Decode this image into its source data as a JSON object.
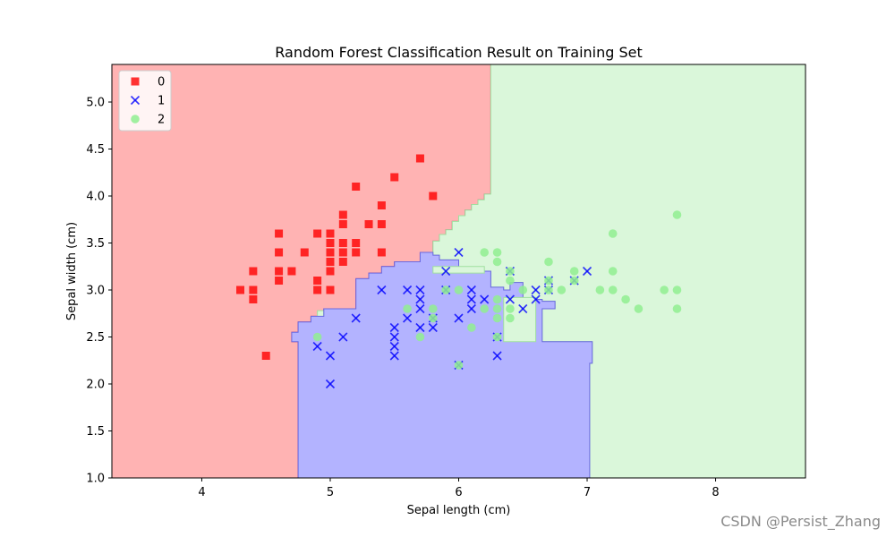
{
  "chart_data": {
    "type": "scatter",
    "title": "Random Forest Classification Result on Training Set",
    "xlabel": "Sepal length (cm)",
    "ylabel": "Sepal width (cm)",
    "xlim": [
      3.3,
      8.7
    ],
    "ylim": [
      1.0,
      5.4
    ],
    "xticks": [
      4,
      5,
      6,
      7,
      8
    ],
    "yticks": [
      1.0,
      1.5,
      2.0,
      2.5,
      3.0,
      3.5,
      4.0,
      4.5,
      5.0
    ],
    "grid": false,
    "legend_position": "top-left",
    "series": [
      {
        "name": "0",
        "marker": "square",
        "color": "#ff0000",
        "points": [
          [
            4.3,
            3.0
          ],
          [
            4.4,
            3.2
          ],
          [
            4.4,
            3.0
          ],
          [
            4.4,
            2.9
          ],
          [
            4.5,
            2.3
          ],
          [
            4.6,
            3.6
          ],
          [
            4.6,
            3.4
          ],
          [
            4.6,
            3.2
          ],
          [
            4.6,
            3.1
          ],
          [
            4.7,
            3.2
          ],
          [
            4.8,
            3.4
          ],
          [
            4.9,
            3.6
          ],
          [
            4.9,
            3.1
          ],
          [
            4.9,
            3.0
          ],
          [
            5.0,
            3.6
          ],
          [
            5.0,
            3.5
          ],
          [
            5.0,
            3.4
          ],
          [
            5.0,
            3.3
          ],
          [
            5.0,
            3.2
          ],
          [
            5.0,
            3.0
          ],
          [
            5.1,
            3.8
          ],
          [
            5.1,
            3.7
          ],
          [
            5.1,
            3.5
          ],
          [
            5.1,
            3.4
          ],
          [
            5.1,
            3.3
          ],
          [
            5.2,
            4.1
          ],
          [
            5.2,
            3.5
          ],
          [
            5.2,
            3.4
          ],
          [
            5.3,
            3.7
          ],
          [
            5.4,
            3.9
          ],
          [
            5.4,
            3.7
          ],
          [
            5.4,
            3.4
          ],
          [
            5.5,
            4.2
          ],
          [
            5.7,
            4.4
          ],
          [
            5.8,
            4.0
          ]
        ]
      },
      {
        "name": "1",
        "marker": "x",
        "color": "#0000ff",
        "points": [
          [
            4.9,
            2.4
          ],
          [
            5.0,
            2.3
          ],
          [
            5.0,
            2.0
          ],
          [
            5.1,
            2.5
          ],
          [
            5.2,
            2.7
          ],
          [
            5.4,
            3.0
          ],
          [
            5.5,
            2.6
          ],
          [
            5.5,
            2.5
          ],
          [
            5.5,
            2.4
          ],
          [
            5.5,
            2.3
          ],
          [
            5.6,
            3.0
          ],
          [
            5.6,
            2.7
          ],
          [
            5.7,
            3.0
          ],
          [
            5.7,
            2.9
          ],
          [
            5.7,
            2.8
          ],
          [
            5.7,
            2.6
          ],
          [
            5.8,
            2.7
          ],
          [
            5.8,
            2.6
          ],
          [
            5.9,
            3.2
          ],
          [
            5.9,
            3.0
          ],
          [
            6.0,
            3.4
          ],
          [
            6.0,
            2.7
          ],
          [
            6.0,
            2.2
          ],
          [
            6.1,
            3.0
          ],
          [
            6.1,
            2.9
          ],
          [
            6.1,
            2.8
          ],
          [
            6.2,
            2.9
          ],
          [
            6.3,
            2.5
          ],
          [
            6.3,
            2.3
          ],
          [
            6.4,
            3.2
          ],
          [
            6.4,
            2.9
          ],
          [
            6.5,
            2.8
          ],
          [
            6.6,
            3.0
          ],
          [
            6.6,
            2.9
          ],
          [
            6.7,
            3.1
          ],
          [
            6.7,
            3.0
          ],
          [
            6.9,
            3.1
          ],
          [
            7.0,
            3.2
          ]
        ]
      },
      {
        "name": "2",
        "marker": "circle",
        "color": "#90ee90",
        "points": [
          [
            4.9,
            2.5
          ],
          [
            5.6,
            2.8
          ],
          [
            5.7,
            2.5
          ],
          [
            5.8,
            2.8
          ],
          [
            5.8,
            2.7
          ],
          [
            5.9,
            3.0
          ],
          [
            6.0,
            3.0
          ],
          [
            6.0,
            2.2
          ],
          [
            6.1,
            2.6
          ],
          [
            6.2,
            3.4
          ],
          [
            6.2,
            2.8
          ],
          [
            6.3,
            3.4
          ],
          [
            6.3,
            3.3
          ],
          [
            6.3,
            2.9
          ],
          [
            6.3,
            2.8
          ],
          [
            6.3,
            2.7
          ],
          [
            6.3,
            2.5
          ],
          [
            6.4,
            3.2
          ],
          [
            6.4,
            3.1
          ],
          [
            6.4,
            2.8
          ],
          [
            6.4,
            2.7
          ],
          [
            6.5,
            3.0
          ],
          [
            6.7,
            3.3
          ],
          [
            6.7,
            3.1
          ],
          [
            6.7,
            3.0
          ],
          [
            6.8,
            3.0
          ],
          [
            6.9,
            3.2
          ],
          [
            6.9,
            3.1
          ],
          [
            7.1,
            3.0
          ],
          [
            7.2,
            3.6
          ],
          [
            7.2,
            3.2
          ],
          [
            7.2,
            3.0
          ],
          [
            7.3,
            2.9
          ],
          [
            7.4,
            2.8
          ],
          [
            7.6,
            3.0
          ],
          [
            7.7,
            3.8
          ],
          [
            7.7,
            3.0
          ],
          [
            7.7,
            2.8
          ]
        ]
      }
    ],
    "regions": [
      {
        "class": "0",
        "color": "#ffb3b3",
        "polygon": [
          [
            3.3,
            5.4
          ],
          [
            6.25,
            5.4
          ],
          [
            6.25,
            4.02
          ],
          [
            6.2,
            4.02
          ],
          [
            6.2,
            3.96
          ],
          [
            6.15,
            3.96
          ],
          [
            6.15,
            3.91
          ],
          [
            6.1,
            3.91
          ],
          [
            6.1,
            3.85
          ],
          [
            6.05,
            3.85
          ],
          [
            6.05,
            3.79
          ],
          [
            6.0,
            3.79
          ],
          [
            6.0,
            3.73
          ],
          [
            5.95,
            3.73
          ],
          [
            5.95,
            3.64
          ],
          [
            5.9,
            3.64
          ],
          [
            5.9,
            3.59
          ],
          [
            5.85,
            3.59
          ],
          [
            5.85,
            3.52
          ],
          [
            5.8,
            3.52
          ],
          [
            5.8,
            3.4
          ],
          [
            5.7,
            3.4
          ],
          [
            5.7,
            3.3
          ],
          [
            5.5,
            3.3
          ],
          [
            5.5,
            3.25
          ],
          [
            5.4,
            3.25
          ],
          [
            5.4,
            3.18
          ],
          [
            5.3,
            3.18
          ],
          [
            5.3,
            3.12
          ],
          [
            5.2,
            3.12
          ],
          [
            5.2,
            2.8
          ],
          [
            4.95,
            2.8
          ],
          [
            4.95,
            2.72
          ],
          [
            4.85,
            2.72
          ],
          [
            4.85,
            2.66
          ],
          [
            4.75,
            2.66
          ],
          [
            4.75,
            2.55
          ],
          [
            4.7,
            2.55
          ],
          [
            4.7,
            2.45
          ],
          [
            4.75,
            2.45
          ],
          [
            4.75,
            1.0
          ],
          [
            3.3,
            1.0
          ]
        ]
      },
      {
        "class": "2",
        "color": "#daf7da",
        "polygon": [
          [
            6.25,
            5.4
          ],
          [
            8.7,
            5.4
          ],
          [
            8.7,
            1.0
          ],
          [
            7.02,
            1.0
          ],
          [
            7.02,
            2.22
          ],
          [
            7.04,
            2.22
          ],
          [
            7.04,
            2.45
          ],
          [
            6.65,
            2.45
          ],
          [
            6.65,
            2.8
          ],
          [
            6.75,
            2.8
          ],
          [
            6.75,
            2.88
          ],
          [
            6.65,
            2.88
          ],
          [
            6.65,
            2.9
          ],
          [
            6.5,
            2.9
          ],
          [
            6.5,
            3.08
          ],
          [
            6.4,
            3.08
          ],
          [
            6.4,
            3.0
          ],
          [
            6.35,
            3.0
          ],
          [
            6.35,
            3.03
          ],
          [
            6.25,
            3.03
          ],
          [
            6.25,
            3.2
          ],
          [
            6.1,
            3.2
          ],
          [
            6.1,
            3.23
          ],
          [
            6.0,
            3.23
          ],
          [
            6.0,
            3.32
          ],
          [
            5.85,
            3.32
          ],
          [
            5.85,
            3.37
          ],
          [
            5.8,
            3.37
          ],
          [
            5.8,
            3.4
          ],
          [
            5.8,
            3.52
          ],
          [
            5.85,
            3.52
          ],
          [
            5.85,
            3.59
          ],
          [
            5.9,
            3.59
          ],
          [
            5.9,
            3.64
          ],
          [
            5.95,
            3.64
          ],
          [
            5.95,
            3.73
          ],
          [
            6.0,
            3.73
          ],
          [
            6.0,
            3.79
          ],
          [
            6.05,
            3.79
          ],
          [
            6.05,
            3.85
          ],
          [
            6.1,
            3.85
          ],
          [
            6.1,
            3.91
          ],
          [
            6.15,
            3.91
          ],
          [
            6.15,
            3.96
          ],
          [
            6.2,
            3.96
          ],
          [
            6.2,
            4.02
          ],
          [
            6.25,
            4.02
          ]
        ]
      },
      {
        "class": "2",
        "color": "#daf7da",
        "polygon": [
          [
            4.9,
            2.78
          ],
          [
            4.95,
            2.78
          ],
          [
            4.95,
            2.55
          ],
          [
            4.9,
            2.55
          ],
          [
            4.9,
            2.63
          ],
          [
            4.85,
            2.63
          ],
          [
            4.85,
            2.7
          ],
          [
            4.9,
            2.7
          ]
        ]
      },
      {
        "class": "1",
        "color": "#b3b3ff",
        "polygon": [
          [
            4.75,
            1.0
          ],
          [
            7.02,
            1.0
          ],
          [
            7.02,
            2.22
          ],
          [
            7.04,
            2.22
          ],
          [
            7.04,
            2.45
          ],
          [
            6.65,
            2.45
          ],
          [
            6.65,
            2.8
          ],
          [
            6.75,
            2.8
          ],
          [
            6.75,
            2.88
          ],
          [
            6.65,
            2.88
          ],
          [
            6.65,
            2.9
          ],
          [
            6.5,
            2.9
          ],
          [
            6.5,
            3.08
          ],
          [
            6.4,
            3.08
          ],
          [
            6.4,
            3.0
          ],
          [
            6.35,
            3.0
          ],
          [
            6.35,
            3.03
          ],
          [
            6.25,
            3.03
          ],
          [
            6.25,
            3.2
          ],
          [
            6.1,
            3.2
          ],
          [
            6.1,
            3.23
          ],
          [
            6.0,
            3.23
          ],
          [
            6.0,
            3.32
          ],
          [
            5.85,
            3.32
          ],
          [
            5.85,
            3.37
          ],
          [
            5.8,
            3.37
          ],
          [
            5.8,
            3.4
          ],
          [
            5.7,
            3.4
          ],
          [
            5.7,
            3.3
          ],
          [
            5.5,
            3.3
          ],
          [
            5.5,
            3.25
          ],
          [
            5.4,
            3.25
          ],
          [
            5.4,
            3.18
          ],
          [
            5.3,
            3.18
          ],
          [
            5.3,
            3.12
          ],
          [
            5.2,
            3.12
          ],
          [
            5.2,
            2.8
          ],
          [
            4.95,
            2.8
          ],
          [
            4.95,
            2.72
          ],
          [
            4.85,
            2.72
          ],
          [
            4.85,
            2.66
          ],
          [
            4.75,
            2.66
          ],
          [
            4.75,
            2.55
          ],
          [
            4.7,
            2.55
          ],
          [
            4.7,
            2.45
          ],
          [
            4.75,
            2.45
          ]
        ]
      },
      {
        "class": "2",
        "color": "#daf7da",
        "polygon": [
          [
            6.35,
            2.45
          ],
          [
            6.35,
            2.92
          ],
          [
            6.6,
            2.92
          ],
          [
            6.6,
            2.45
          ]
        ]
      },
      {
        "class": "2",
        "color": "#daf7da",
        "polygon": [
          [
            5.8,
            3.25
          ],
          [
            5.8,
            3.18
          ],
          [
            6.2,
            3.18
          ],
          [
            6.2,
            3.25
          ]
        ]
      }
    ]
  },
  "watermark": "CSDN @Persist_Zhang"
}
